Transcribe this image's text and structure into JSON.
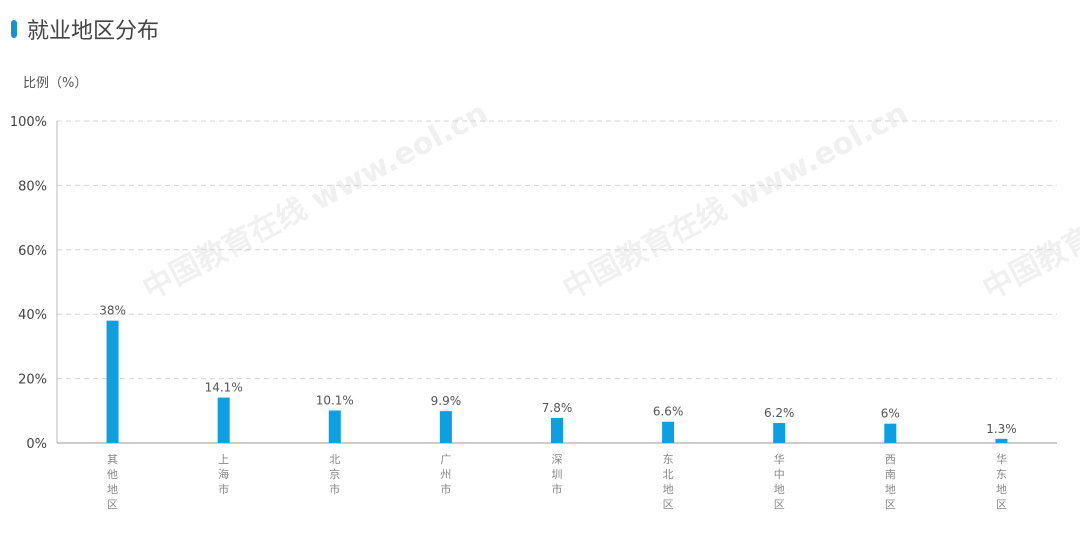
{
  "title": "就业地区分布",
  "chart_data": {
    "type": "bar",
    "title": "就业地区分布",
    "ylabel": "比例（%）",
    "xlabel": "",
    "ylim": [
      0,
      100
    ],
    "yticks": [
      0,
      20,
      40,
      60,
      80,
      100
    ],
    "ytick_labels": [
      "0%",
      "20%",
      "40%",
      "60%",
      "80%",
      "100%"
    ],
    "grid": true,
    "categories": [
      "其他地区",
      "上海市",
      "北京市",
      "广州市",
      "深圳市",
      "东北地区",
      "华中地区",
      "西南地区",
      "华东地区"
    ],
    "values": [
      38,
      14.1,
      10.1,
      9.9,
      7.8,
      6.6,
      6.2,
      6,
      1.3
    ],
    "data_labels": [
      "38%",
      "14.1%",
      "10.1%",
      "9.9%",
      "7.8%",
      "6.6%",
      "6.2%",
      "6%",
      "1.3%"
    ],
    "bar_color": "#0ca0e2",
    "accent_color": "#1a8fd1"
  },
  "watermark": "中国教育在线 www.eol.cn"
}
